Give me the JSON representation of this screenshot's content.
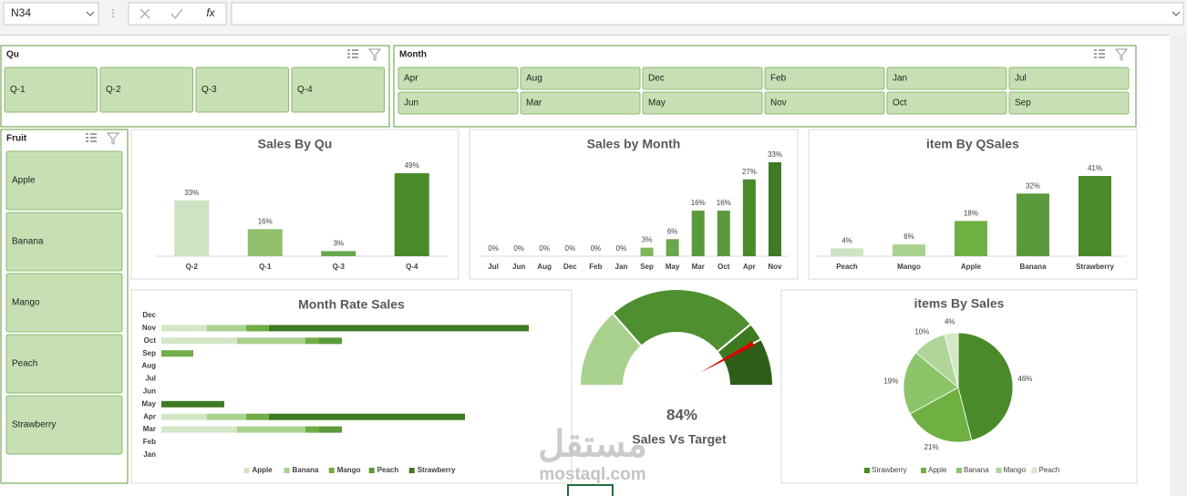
{
  "toolbar": {
    "name_box": "N34",
    "fx": "fx"
  },
  "slicers": [
    {
      "title": "Qu",
      "items": [
        "Q-1",
        "Q-2",
        "Q-3",
        "Q-4"
      ]
    },
    {
      "title": "Month",
      "items": [
        "Apr",
        "Aug",
        "Dec",
        "Feb",
        "Jan",
        "Jul",
        "Jun",
        "Mar",
        "May",
        "Nov",
        "Oct",
        "Sep"
      ]
    },
    {
      "title": "Fruit",
      "items": [
        "Apple",
        "Banana",
        "Mango",
        "Peach",
        "Strawberry"
      ]
    }
  ],
  "chart_data": [
    {
      "type": "bar",
      "title": "Sales By Qu",
      "categories": [
        "Q-2",
        "Q-1",
        "Q-3",
        "Q-4"
      ],
      "values": [
        33,
        16,
        3,
        49
      ],
      "value_labels": [
        "33%",
        "16%",
        "3%",
        "49%"
      ],
      "colors": [
        "#cfe3c3",
        "#93c06f",
        "#6aa84f",
        "#4a8a2a"
      ]
    },
    {
      "type": "bar",
      "title": "Sales by Month",
      "categories": [
        "Jul",
        "Jun",
        "Aug",
        "Dec",
        "Feb",
        "Jan",
        "Sep",
        "May",
        "Mar",
        "Oct",
        "Apr",
        "Nov"
      ],
      "values": [
        0,
        0,
        0,
        0,
        0,
        0,
        3,
        6,
        16,
        16,
        27,
        33
      ],
      "value_labels": [
        "0%",
        "0%",
        "0%",
        "0%",
        "0%",
        "0%",
        "3%",
        "6%",
        "16%",
        "16%",
        "27%",
        "33%"
      ],
      "colors": [
        "#c9e0b8",
        "#c9e0b8",
        "#c9e0b8",
        "#c9e0b8",
        "#c9e0b8",
        "#c9e0b8",
        "#7fb85a",
        "#6aa84f",
        "#5a9a3c",
        "#5a9a3c",
        "#4a8a2a",
        "#3f7a24"
      ]
    },
    {
      "type": "bar",
      "title": "item By QSales",
      "categories": [
        "Peach",
        "Mango",
        "Apple",
        "Banana",
        "Strawberry"
      ],
      "values": [
        4,
        6,
        18,
        32,
        41
      ],
      "value_labels": [
        "4%",
        "6%",
        "18%",
        "32%",
        "41%"
      ],
      "colors": [
        "#cfe3c3",
        "#a9d18e",
        "#6fb043",
        "#5a9a3c",
        "#4a8a2a"
      ]
    },
    {
      "type": "stacked_barh",
      "title": "Month Rate Sales",
      "categories": [
        "Dec",
        "Nov",
        "Oct",
        "Sep",
        "Aug",
        "Jul",
        "Jun",
        "May",
        "Apr",
        "Mar",
        "Feb",
        "Jan"
      ],
      "xlim": [
        0,
        450
      ],
      "legend": "bottom",
      "series": [
        {
          "name": "Apple",
          "color": "#d3e6c6",
          "values": [
            0,
            50,
            83,
            0,
            0,
            0,
            0,
            0,
            50,
            83,
            0,
            0
          ]
        },
        {
          "name": "Banana",
          "color": "#a9d18e",
          "values": [
            0,
            43,
            75,
            0,
            0,
            0,
            0,
            0,
            43,
            75,
            0,
            0
          ]
        },
        {
          "name": "Mango",
          "color": "#70ad47",
          "values": [
            0,
            25,
            15,
            35,
            0,
            0,
            0,
            0,
            25,
            15,
            0,
            0
          ]
        },
        {
          "name": "Peach",
          "color": "#5a9a3c",
          "values": [
            0,
            0,
            25,
            0,
            0,
            0,
            0,
            0,
            0,
            25,
            0,
            0
          ]
        },
        {
          "name": "Strawberry",
          "color": "#3f7a24",
          "values": [
            0,
            285,
            0,
            0,
            0,
            0,
            0,
            69,
            215,
            0,
            0,
            0
          ]
        }
      ]
    },
    {
      "type": "gauge",
      "title": "Sales Vs Target",
      "value": 84,
      "value_label": "84%",
      "lim": [
        0,
        100
      ],
      "bands": [
        27,
        51,
        6,
        16
      ],
      "band_colors": [
        "#a9d18e",
        "#4f8f2f",
        "#3d7a1f",
        "#2e5e18"
      ],
      "needle_color": "#e00000"
    },
    {
      "type": "pie",
      "title": "items By Sales",
      "categories": [
        "Strawberry",
        "Apple",
        "Banana",
        "Mango",
        "Peach"
      ],
      "values": [
        46,
        21,
        19,
        10,
        4
      ],
      "value_labels": [
        "46%",
        "21%",
        "19%",
        "10%",
        "4%"
      ],
      "colors": [
        "#4a8a2a",
        "#6fb043",
        "#8cc46a",
        "#b0d49a",
        "#d4e8c6"
      ],
      "legend": "bottom"
    }
  ],
  "watermark": {
    "arabic": "مستقل",
    "latin": "mostaql.com"
  }
}
